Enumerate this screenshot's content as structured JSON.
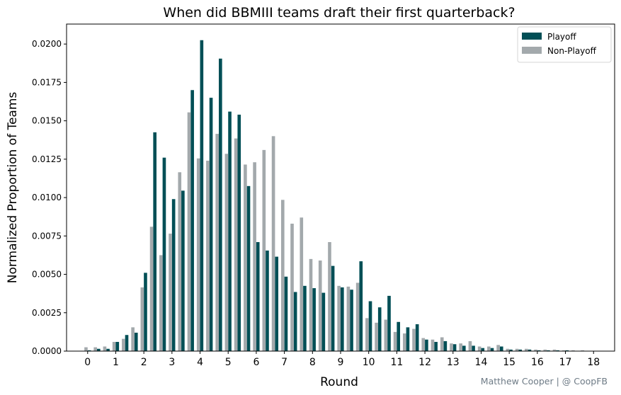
{
  "chart_data": {
    "type": "bar",
    "title": "When did BBMIII teams draft their first quarterback?",
    "xlabel": "Round",
    "ylabel": "Normalized Proportion of Teams",
    "credit": "Matthew Cooper | @ CoopFB",
    "x_ticks": [
      "0",
      "1",
      "2",
      "3",
      "4",
      "5",
      "6",
      "7",
      "8",
      "9",
      "10",
      "11",
      "12",
      "13",
      "14",
      "15",
      "16",
      "17",
      "18"
    ],
    "y_ticks": [
      "0.0000",
      "0.0025",
      "0.0050",
      "0.0075",
      "0.0100",
      "0.0125",
      "0.0150",
      "0.0175",
      "0.0200"
    ],
    "xlim": [
      -0.75,
      18.75
    ],
    "ylim": [
      0,
      0.0213
    ],
    "grid": false,
    "legend_position": "top-right",
    "bin_width": 0.333,
    "x": [
      0.0,
      0.333,
      0.667,
      1.0,
      1.333,
      1.667,
      2.0,
      2.333,
      2.667,
      3.0,
      3.333,
      3.667,
      4.0,
      4.333,
      4.667,
      5.0,
      5.333,
      5.667,
      6.0,
      6.333,
      6.667,
      7.0,
      7.333,
      7.667,
      8.0,
      8.333,
      8.667,
      9.0,
      9.333,
      9.667,
      10.0,
      10.333,
      10.667,
      11.0,
      11.333,
      11.667,
      12.0,
      12.333,
      12.667,
      13.0,
      13.333,
      13.667,
      14.0,
      14.333,
      14.667,
      15.0,
      15.333,
      15.667,
      16.0,
      16.333,
      16.667,
      17.0,
      17.333,
      17.667
    ],
    "series": [
      {
        "name": "Playoff",
        "color": "#014f56",
        "values": [
          5e-05,
          0.00015,
          0.00015,
          0.0006,
          0.00105,
          0.0012,
          0.0051,
          0.01425,
          0.0126,
          0.0099,
          0.01045,
          0.017,
          0.02025,
          0.0165,
          0.01905,
          0.0156,
          0.0154,
          0.01075,
          0.0071,
          0.00655,
          0.00615,
          0.00485,
          0.00385,
          0.00425,
          0.0041,
          0.0038,
          0.00555,
          0.00415,
          0.004,
          0.00585,
          0.00325,
          0.00285,
          0.0036,
          0.0019,
          0.00155,
          0.00175,
          0.00075,
          0.0006,
          0.00065,
          0.00045,
          0.00035,
          0.00035,
          0.0002,
          0.0002,
          0.0003,
          0.0001,
          0.0001,
          0.0001,
          5e-05,
          5e-05,
          5e-05,
          5e-05,
          2e-05,
          2e-05
        ]
      },
      {
        "name": "Non-Playoff",
        "color": "#a3a9ac",
        "values": [
          0.00025,
          0.00025,
          0.0003,
          0.0006,
          0.0008,
          0.00155,
          0.00415,
          0.0081,
          0.00625,
          0.00765,
          0.01165,
          0.01555,
          0.01255,
          0.0124,
          0.01415,
          0.01285,
          0.01385,
          0.01215,
          0.0123,
          0.0131,
          0.014,
          0.00985,
          0.0083,
          0.0087,
          0.006,
          0.0059,
          0.0071,
          0.00425,
          0.0042,
          0.00445,
          0.00215,
          0.00185,
          0.00205,
          0.00125,
          0.00115,
          0.00145,
          0.00085,
          0.00075,
          0.0009,
          0.0005,
          0.0005,
          0.00065,
          0.0003,
          0.0003,
          0.0004,
          0.00015,
          0.00015,
          0.00015,
          0.0001,
          0.0001,
          0.0001,
          5e-05,
          5e-05,
          5e-05
        ]
      }
    ]
  }
}
